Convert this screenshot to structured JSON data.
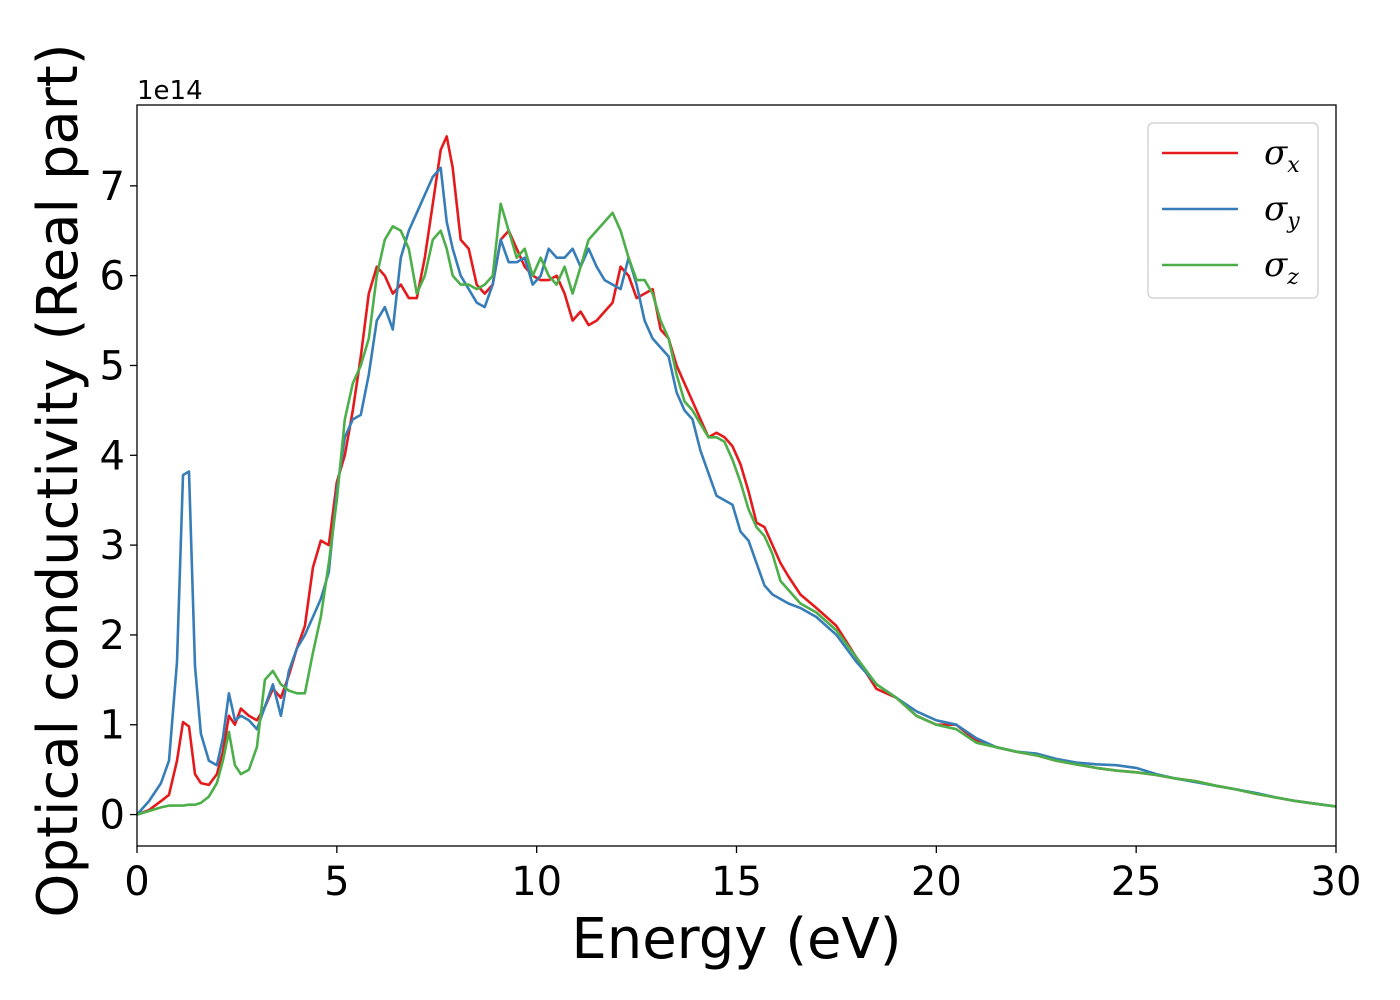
{
  "chart_data": {
    "type": "line",
    "xlabel": "Energy (eV)",
    "ylabel": "Optical conductivity (Real part)",
    "y_offset_text": "1e14",
    "xlim": [
      0,
      30
    ],
    "ylim": [
      -0.35,
      7.9
    ],
    "xticks": [
      0,
      5,
      10,
      15,
      20,
      25,
      30
    ],
    "yticks": [
      0,
      1,
      2,
      3,
      4,
      5,
      6,
      7
    ],
    "grid": false,
    "legend_position": "top-right",
    "series": [
      {
        "name": "σx",
        "symbol": "σ",
        "subscript": "x",
        "color": "#e41a1c",
        "x": [
          0,
          0.3,
          0.6,
          0.8,
          1.0,
          1.15,
          1.3,
          1.45,
          1.6,
          1.8,
          2.0,
          2.15,
          2.3,
          2.45,
          2.6,
          2.8,
          3.0,
          3.2,
          3.4,
          3.6,
          3.8,
          4.0,
          4.2,
          4.4,
          4.6,
          4.8,
          5.0,
          5.2,
          5.4,
          5.6,
          5.8,
          6.0,
          6.2,
          6.4,
          6.6,
          6.8,
          7.0,
          7.2,
          7.4,
          7.6,
          7.75,
          7.9,
          8.1,
          8.3,
          8.5,
          8.7,
          8.9,
          9.1,
          9.3,
          9.5,
          9.7,
          9.9,
          10.1,
          10.3,
          10.5,
          10.7,
          10.9,
          11.1,
          11.3,
          11.5,
          11.7,
          11.9,
          12.1,
          12.3,
          12.5,
          12.7,
          12.9,
          13.1,
          13.3,
          13.5,
          13.7,
          13.9,
          14.1,
          14.3,
          14.5,
          14.7,
          14.9,
          15.1,
          15.3,
          15.5,
          15.7,
          15.9,
          16.1,
          16.3,
          16.6,
          17.0,
          17.5,
          18.0,
          18.5,
          19.0,
          19.5,
          20.0,
          20.5,
          21.0,
          21.5,
          22.0,
          22.5,
          23.0,
          23.5,
          24.0,
          24.5,
          25.0,
          25.5,
          26.0,
          26.5,
          27.0,
          27.5,
          28.0,
          28.5,
          29.0,
          29.5,
          30.0
        ],
        "y": [
          0,
          0.05,
          0.15,
          0.22,
          0.6,
          1.03,
          0.98,
          0.45,
          0.35,
          0.33,
          0.45,
          0.7,
          1.1,
          1.0,
          1.18,
          1.1,
          1.05,
          1.2,
          1.4,
          1.3,
          1.55,
          1.85,
          2.1,
          2.75,
          3.05,
          3.0,
          3.7,
          4.0,
          4.5,
          5.1,
          5.8,
          6.1,
          6.0,
          5.8,
          5.9,
          5.75,
          5.75,
          6.2,
          6.8,
          7.4,
          7.55,
          7.2,
          6.4,
          6.3,
          5.9,
          5.8,
          5.9,
          6.4,
          6.5,
          6.3,
          6.1,
          6.0,
          5.95,
          5.95,
          6.0,
          5.8,
          5.5,
          5.6,
          5.45,
          5.5,
          5.6,
          5.7,
          6.1,
          6.0,
          5.75,
          5.8,
          5.85,
          5.4,
          5.3,
          5.0,
          4.8,
          4.6,
          4.4,
          4.2,
          4.25,
          4.2,
          4.1,
          3.9,
          3.6,
          3.25,
          3.2,
          3.0,
          2.8,
          2.65,
          2.45,
          2.3,
          2.1,
          1.75,
          1.4,
          1.3,
          1.1,
          1.0,
          1.0,
          0.82,
          0.75,
          0.7,
          0.66,
          0.6,
          0.56,
          0.52,
          0.49,
          0.47,
          0.44,
          0.4,
          0.37,
          0.32,
          0.28,
          0.23,
          0.19,
          0.15,
          0.12,
          0.09
        ]
      },
      {
        "name": "σy",
        "symbol": "σ",
        "subscript": "y",
        "color": "#377eb8",
        "x": [
          0,
          0.3,
          0.6,
          0.8,
          1.0,
          1.15,
          1.3,
          1.45,
          1.6,
          1.8,
          2.0,
          2.15,
          2.3,
          2.45,
          2.6,
          2.8,
          3.0,
          3.2,
          3.4,
          3.6,
          3.8,
          4.0,
          4.2,
          4.4,
          4.6,
          4.8,
          5.0,
          5.2,
          5.4,
          5.6,
          5.8,
          6.0,
          6.2,
          6.4,
          6.6,
          6.8,
          7.0,
          7.2,
          7.4,
          7.6,
          7.75,
          7.9,
          8.1,
          8.3,
          8.5,
          8.7,
          8.9,
          9.1,
          9.3,
          9.5,
          9.7,
          9.9,
          10.1,
          10.3,
          10.5,
          10.7,
          10.9,
          11.1,
          11.3,
          11.5,
          11.7,
          11.9,
          12.1,
          12.3,
          12.5,
          12.7,
          12.9,
          13.1,
          13.3,
          13.5,
          13.7,
          13.9,
          14.1,
          14.3,
          14.5,
          14.7,
          14.9,
          15.1,
          15.3,
          15.5,
          15.7,
          15.9,
          16.1,
          16.3,
          16.6,
          17.0,
          17.5,
          18.0,
          18.5,
          19.0,
          19.5,
          20.0,
          20.5,
          21.0,
          21.5,
          22.0,
          22.5,
          23.0,
          23.5,
          24.0,
          24.5,
          25.0,
          25.5,
          26.0,
          26.5,
          27.0,
          27.5,
          28.0,
          28.5,
          29.0,
          29.5,
          30.0
        ],
        "y": [
          0,
          0.15,
          0.35,
          0.6,
          1.7,
          3.78,
          3.82,
          1.65,
          0.9,
          0.6,
          0.55,
          0.85,
          1.35,
          1.05,
          1.1,
          1.05,
          0.95,
          1.2,
          1.45,
          1.1,
          1.6,
          1.85,
          2.0,
          2.2,
          2.4,
          2.7,
          3.6,
          4.2,
          4.4,
          4.45,
          4.9,
          5.5,
          5.65,
          5.4,
          6.2,
          6.5,
          6.7,
          6.9,
          7.1,
          7.2,
          6.6,
          6.3,
          6.0,
          5.85,
          5.7,
          5.65,
          5.9,
          6.4,
          6.15,
          6.15,
          6.2,
          5.9,
          6.0,
          6.3,
          6.2,
          6.2,
          6.3,
          6.1,
          6.3,
          6.1,
          5.95,
          5.9,
          5.85,
          6.2,
          5.9,
          5.5,
          5.3,
          5.2,
          5.1,
          4.7,
          4.5,
          4.4,
          4.05,
          3.8,
          3.55,
          3.5,
          3.45,
          3.15,
          3.05,
          2.8,
          2.55,
          2.45,
          2.4,
          2.35,
          2.3,
          2.2,
          2.0,
          1.7,
          1.45,
          1.3,
          1.15,
          1.05,
          1.0,
          0.85,
          0.75,
          0.7,
          0.68,
          0.62,
          0.58,
          0.56,
          0.55,
          0.52,
          0.45,
          0.4,
          0.36,
          0.32,
          0.28,
          0.24,
          0.19,
          0.15,
          0.12,
          0.09
        ]
      },
      {
        "name": "σz",
        "symbol": "σ",
        "subscript": "z",
        "color": "#4daf4a",
        "x": [
          0,
          0.3,
          0.6,
          0.8,
          1.0,
          1.15,
          1.3,
          1.45,
          1.6,
          1.8,
          2.0,
          2.15,
          2.3,
          2.45,
          2.6,
          2.8,
          3.0,
          3.2,
          3.4,
          3.6,
          3.8,
          4.0,
          4.2,
          4.4,
          4.6,
          4.8,
          5.0,
          5.2,
          5.4,
          5.6,
          5.8,
          6.0,
          6.2,
          6.4,
          6.6,
          6.8,
          7.0,
          7.2,
          7.4,
          7.6,
          7.75,
          7.9,
          8.1,
          8.3,
          8.5,
          8.7,
          8.9,
          9.1,
          9.3,
          9.5,
          9.7,
          9.9,
          10.1,
          10.3,
          10.5,
          10.7,
          10.9,
          11.1,
          11.3,
          11.5,
          11.7,
          11.9,
          12.1,
          12.3,
          12.5,
          12.7,
          12.9,
          13.1,
          13.3,
          13.5,
          13.7,
          13.9,
          14.1,
          14.3,
          14.5,
          14.7,
          14.9,
          15.1,
          15.3,
          15.5,
          15.7,
          15.9,
          16.1,
          16.3,
          16.6,
          17.0,
          17.5,
          18.0,
          18.5,
          19.0,
          19.5,
          20.0,
          20.5,
          21.0,
          21.5,
          22.0,
          22.5,
          23.0,
          23.5,
          24.0,
          24.5,
          25.0,
          25.5,
          26.0,
          26.5,
          27.0,
          27.5,
          28.0,
          28.5,
          29.0,
          29.5,
          30.0
        ],
        "y": [
          0,
          0.04,
          0.08,
          0.1,
          0.1,
          0.1,
          0.11,
          0.11,
          0.13,
          0.2,
          0.35,
          0.6,
          0.92,
          0.55,
          0.45,
          0.5,
          0.75,
          1.5,
          1.6,
          1.45,
          1.38,
          1.35,
          1.35,
          1.8,
          2.2,
          2.8,
          3.5,
          4.4,
          4.8,
          5.0,
          5.3,
          6.0,
          6.4,
          6.55,
          6.5,
          6.3,
          5.8,
          6.0,
          6.4,
          6.5,
          6.3,
          6.0,
          5.9,
          5.9,
          5.85,
          5.9,
          6.0,
          6.8,
          6.5,
          6.2,
          6.3,
          6.0,
          6.2,
          6.0,
          5.9,
          6.1,
          5.8,
          6.1,
          6.4,
          6.5,
          6.6,
          6.7,
          6.5,
          6.2,
          5.95,
          5.95,
          5.8,
          5.5,
          5.3,
          4.9,
          4.6,
          4.5,
          4.35,
          4.2,
          4.2,
          4.15,
          3.95,
          3.7,
          3.4,
          3.2,
          3.1,
          2.9,
          2.6,
          2.5,
          2.35,
          2.25,
          2.05,
          1.75,
          1.45,
          1.3,
          1.1,
          1.0,
          0.95,
          0.8,
          0.75,
          0.7,
          0.66,
          0.6,
          0.56,
          0.52,
          0.49,
          0.47,
          0.44,
          0.4,
          0.37,
          0.32,
          0.28,
          0.23,
          0.19,
          0.15,
          0.12,
          0.09
        ]
      }
    ]
  }
}
